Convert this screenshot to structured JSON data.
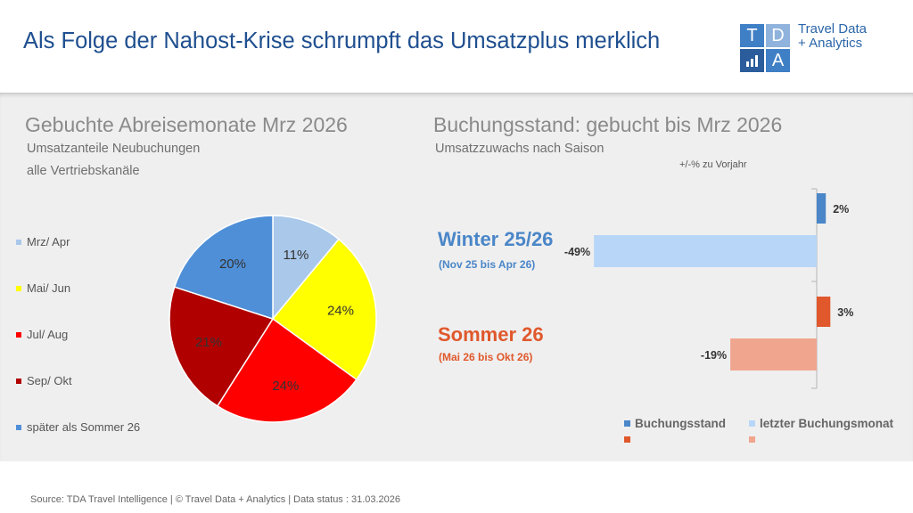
{
  "header": {
    "title": "Als Folge der Nahost-Krise schrumpft das Umsatzplus merklich",
    "logo": {
      "letters": [
        "T",
        "D",
        "",
        "A"
      ],
      "name_line1": "Travel Data",
      "name_line2": "+ Analytics"
    }
  },
  "left": {
    "heading": "Gebuchte Abreisemonate Mrz 2026",
    "subheading1": "Umsatzanteile Neubuchungen",
    "subheading2": "alle Vertriebskanäle"
  },
  "right": {
    "heading": "Buchungsstand: gebucht bis Mrz 2026",
    "subheading": "Umsatzzuwachs nach Saison",
    "axis_note": "+/-% zu Vorjahr",
    "winter": {
      "title": "Winter 25/26",
      "range": "(Nov 25 bis Apr 26)"
    },
    "summer": {
      "title": "Sommer 26",
      "range": "(Mai 26 bis Okt 26)"
    }
  },
  "colors": {
    "title_blue": "#1f4f8f",
    "winter_blue": "#4a86c8",
    "summer_orange": "#e0582c"
  },
  "chart_data": [
    {
      "type": "pie",
      "categories": [
        "Mrz/ Apr",
        "Mai/ Jun",
        "Jul/ Aug",
        "Sep/ Okt",
        "später als Sommer 26"
      ],
      "values": [
        11,
        24,
        24,
        21,
        20
      ],
      "labels": [
        "11%",
        "24%",
        "24%",
        "21%",
        "20%"
      ],
      "colors": [
        "#a9c8ea",
        "#ffff00",
        "#ff0000",
        "#b00000",
        "#4f8fd8"
      ],
      "legend_position": "left"
    },
    {
      "type": "bar",
      "orientation": "horizontal",
      "categories": [
        "Winter 25/26",
        "Sommer 26"
      ],
      "series": [
        {
          "name": "Buchungsstand",
          "values": [
            2,
            3
          ],
          "labels": [
            "2%",
            "3%"
          ],
          "colors": [
            "#4a86c8",
            "#e0582c"
          ]
        },
        {
          "name": "letzter Buchungsmonat",
          "values": [
            -49,
            -19
          ],
          "labels": [
            "-49%",
            "-19%"
          ],
          "colors": [
            "#b8d7f8",
            "#f0a58e"
          ]
        }
      ],
      "legend_position": "bottom"
    }
  ],
  "footer": {
    "text": "Source: TDA Travel Intelligence   |   © Travel Data + Analytics   | Data status : 31.03.2026"
  }
}
